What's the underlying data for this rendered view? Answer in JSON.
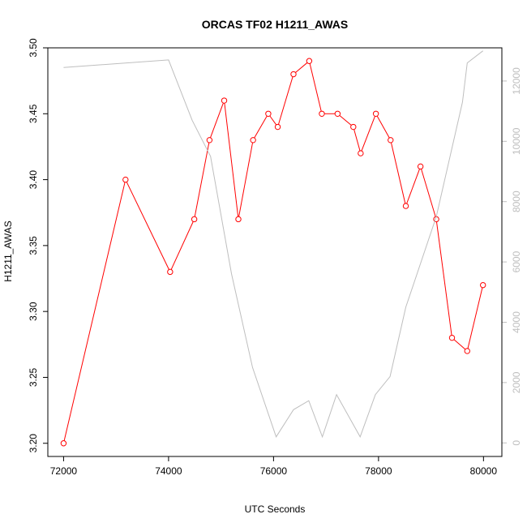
{
  "chart_data": {
    "type": "line",
    "title": "ORCAS TF02 H1211_AWAS",
    "xlabel": "UTC Seconds",
    "ylabel": "H1211_AWAS",
    "xlim": [
      71700,
      80350
    ],
    "ylim": [
      3.19,
      3.5
    ],
    "y2lim": [
      -450,
      13100
    ],
    "grid": false,
    "x_ticks": [
      72000,
      74000,
      76000,
      78000,
      80000
    ],
    "y_ticks": [
      3.2,
      3.25,
      3.3,
      3.35,
      3.4,
      3.45,
      3.5
    ],
    "y2_ticks": [
      0,
      2000,
      4000,
      6000,
      8000,
      10000,
      12000
    ],
    "colors": {
      "primary": "#ff0000",
      "secondary": "#bebebe",
      "axis": "#000000"
    },
    "series": [
      {
        "axis": "left",
        "style": "line+points",
        "color": "#ff0000",
        "x": [
          72000,
          73180,
          74030,
          74490,
          74780,
          75060,
          75330,
          75610,
          75900,
          76080,
          76380,
          76680,
          76920,
          77220,
          77520,
          77660,
          77950,
          78230,
          78520,
          78800,
          79100,
          79400,
          79690,
          79990
        ],
        "y": [
          3.2,
          3.4,
          3.33,
          3.37,
          3.43,
          3.46,
          3.37,
          3.43,
          3.45,
          3.44,
          3.48,
          3.49,
          3.45,
          3.45,
          3.44,
          3.42,
          3.45,
          3.43,
          3.38,
          3.41,
          3.37,
          3.28,
          3.27,
          3.32
        ]
      },
      {
        "axis": "right",
        "style": "line",
        "color": "#bebebe",
        "x": [
          72000,
          74000,
          74450,
          74800,
          75200,
          75600,
          76050,
          76380,
          76670,
          76930,
          77200,
          77650,
          77940,
          78220,
          78520,
          79100,
          79600,
          79690,
          79990
        ],
        "y": [
          12450,
          12700,
          10700,
          9500,
          5600,
          2500,
          200,
          1100,
          1400,
          200,
          1600,
          200,
          1600,
          2200,
          4500,
          7500,
          11300,
          12600,
          13000
        ]
      }
    ]
  }
}
